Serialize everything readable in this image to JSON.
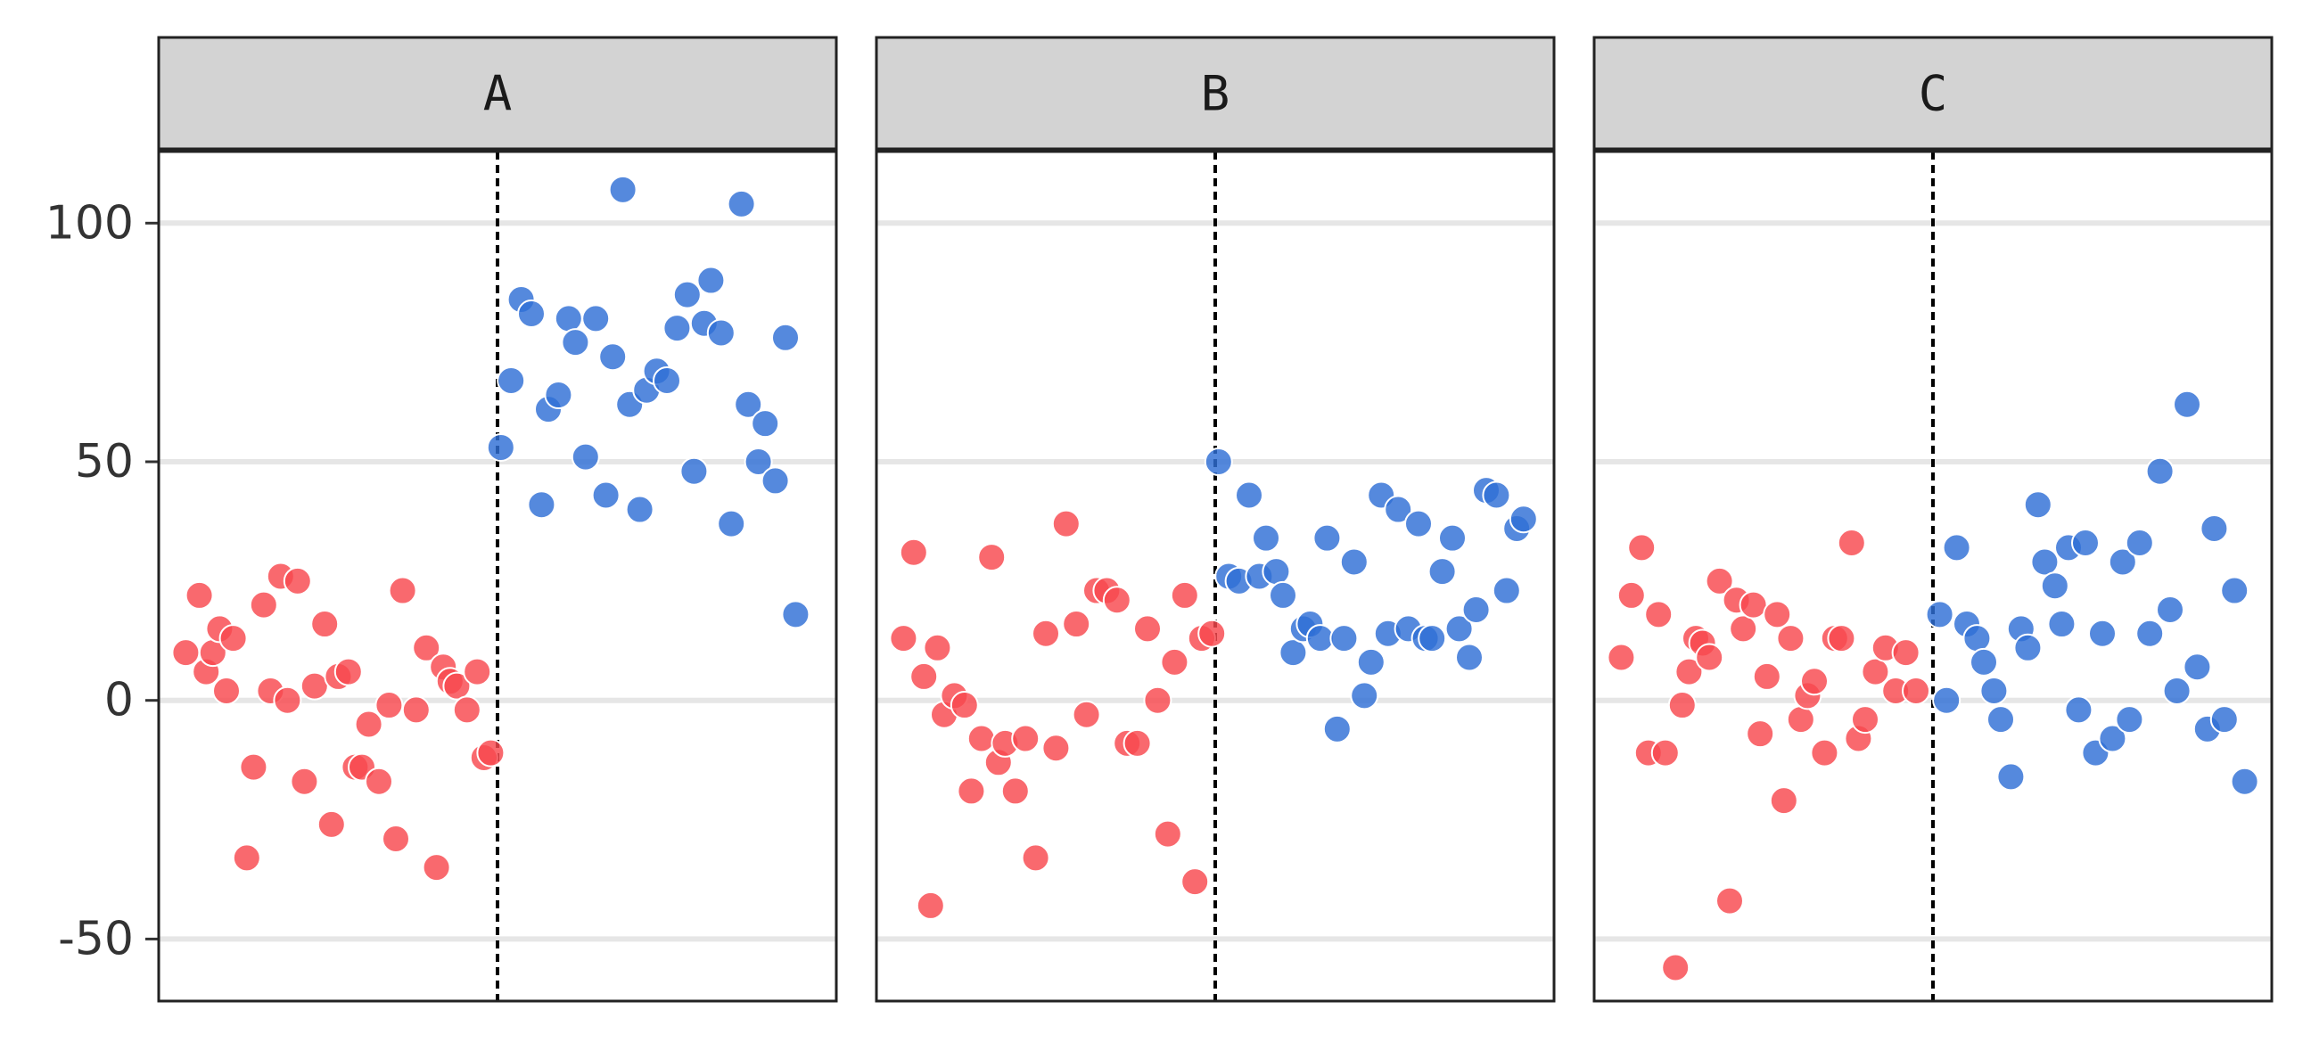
{
  "chart_data": {
    "type": "scatter",
    "facet_by": "group",
    "ylim": [
      -63,
      115
    ],
    "y_ticks": [
      -50,
      0,
      50,
      100
    ],
    "y_tick_labels": [
      "-50",
      "0",
      "50",
      "100"
    ],
    "grid": "horizontal major",
    "x_axis_visible": false,
    "colors": {
      "before": "#f8484e",
      "after": "#2f6fd5",
      "cutoff_line": "#000000",
      "strip": "#d3d3d3",
      "grid": "#e6e6e6"
    },
    "facets": [
      {
        "label": "A",
        "cutoff": 0.5,
        "before": [
          [
            0.04,
            10
          ],
          [
            0.06,
            22
          ],
          [
            0.07,
            6
          ],
          [
            0.08,
            10
          ],
          [
            0.09,
            15
          ],
          [
            0.1,
            2
          ],
          [
            0.11,
            13
          ],
          [
            0.13,
            -33
          ],
          [
            0.14,
            -14
          ],
          [
            0.155,
            20
          ],
          [
            0.165,
            2
          ],
          [
            0.18,
            26
          ],
          [
            0.19,
            0
          ],
          [
            0.205,
            25
          ],
          [
            0.215,
            -17
          ],
          [
            0.23,
            3
          ],
          [
            0.245,
            16
          ],
          [
            0.255,
            -26
          ],
          [
            0.265,
            5
          ],
          [
            0.28,
            6
          ],
          [
            0.29,
            -14
          ],
          [
            0.3,
            -14
          ],
          [
            0.31,
            -5
          ],
          [
            0.325,
            -17
          ],
          [
            0.34,
            -1
          ],
          [
            0.35,
            -29
          ],
          [
            0.36,
            23
          ],
          [
            0.38,
            -2
          ],
          [
            0.395,
            11
          ],
          [
            0.41,
            -35
          ],
          [
            0.42,
            7
          ],
          [
            0.43,
            4
          ],
          [
            0.44,
            3
          ],
          [
            0.455,
            -2
          ],
          [
            0.47,
            6
          ],
          [
            0.48,
            -12
          ],
          [
            0.49,
            -11
          ]
        ],
        "after": [
          [
            0.505,
            53
          ],
          [
            0.52,
            67
          ],
          [
            0.535,
            84
          ],
          [
            0.55,
            81
          ],
          [
            0.565,
            41
          ],
          [
            0.575,
            61
          ],
          [
            0.59,
            64
          ],
          [
            0.605,
            80
          ],
          [
            0.615,
            75
          ],
          [
            0.63,
            51
          ],
          [
            0.645,
            80
          ],
          [
            0.66,
            43
          ],
          [
            0.67,
            72
          ],
          [
            0.685,
            107
          ],
          [
            0.695,
            62
          ],
          [
            0.71,
            40
          ],
          [
            0.72,
            65
          ],
          [
            0.735,
            69
          ],
          [
            0.75,
            67
          ],
          [
            0.765,
            78
          ],
          [
            0.78,
            85
          ],
          [
            0.79,
            48
          ],
          [
            0.805,
            79
          ],
          [
            0.815,
            88
          ],
          [
            0.83,
            77
          ],
          [
            0.845,
            37
          ],
          [
            0.86,
            104
          ],
          [
            0.87,
            62
          ],
          [
            0.885,
            50
          ],
          [
            0.895,
            58
          ],
          [
            0.91,
            46
          ],
          [
            0.925,
            76
          ],
          [
            0.94,
            18
          ]
        ]
      },
      {
        "label": "B",
        "cutoff": 0.5,
        "before": [
          [
            0.04,
            13
          ],
          [
            0.055,
            31
          ],
          [
            0.07,
            5
          ],
          [
            0.08,
            -43
          ],
          [
            0.09,
            11
          ],
          [
            0.1,
            -3
          ],
          [
            0.115,
            1
          ],
          [
            0.13,
            -1
          ],
          [
            0.14,
            -19
          ],
          [
            0.155,
            -8
          ],
          [
            0.17,
            30
          ],
          [
            0.18,
            -13
          ],
          [
            0.19,
            -9
          ],
          [
            0.205,
            -19
          ],
          [
            0.22,
            -8
          ],
          [
            0.235,
            -33
          ],
          [
            0.25,
            14
          ],
          [
            0.265,
            -10
          ],
          [
            0.28,
            37
          ],
          [
            0.295,
            16
          ],
          [
            0.31,
            -3
          ],
          [
            0.325,
            23
          ],
          [
            0.34,
            23
          ],
          [
            0.355,
            21
          ],
          [
            0.37,
            -9
          ],
          [
            0.385,
            -9
          ],
          [
            0.4,
            15
          ],
          [
            0.415,
            0
          ],
          [
            0.43,
            -28
          ],
          [
            0.44,
            8
          ],
          [
            0.455,
            22
          ],
          [
            0.47,
            -38
          ],
          [
            0.48,
            13
          ],
          [
            0.495,
            14
          ]
        ],
        "after": [
          [
            0.505,
            50
          ],
          [
            0.52,
            26
          ],
          [
            0.535,
            25
          ],
          [
            0.55,
            43
          ],
          [
            0.565,
            26
          ],
          [
            0.575,
            34
          ],
          [
            0.59,
            27
          ],
          [
            0.6,
            22
          ],
          [
            0.615,
            10
          ],
          [
            0.63,
            15
          ],
          [
            0.64,
            16
          ],
          [
            0.655,
            13
          ],
          [
            0.665,
            34
          ],
          [
            0.68,
            -6
          ],
          [
            0.69,
            13
          ],
          [
            0.705,
            29
          ],
          [
            0.72,
            1
          ],
          [
            0.73,
            8
          ],
          [
            0.745,
            43
          ],
          [
            0.755,
            14
          ],
          [
            0.77,
            40
          ],
          [
            0.785,
            15
          ],
          [
            0.8,
            37
          ],
          [
            0.81,
            13
          ],
          [
            0.82,
            13
          ],
          [
            0.835,
            27
          ],
          [
            0.85,
            34
          ],
          [
            0.86,
            15
          ],
          [
            0.875,
            9
          ],
          [
            0.885,
            19
          ],
          [
            0.9,
            44
          ],
          [
            0.915,
            43
          ],
          [
            0.93,
            23
          ],
          [
            0.945,
            36
          ],
          [
            0.955,
            38
          ]
        ]
      },
      {
        "label": "C",
        "cutoff": 0.5,
        "before": [
          [
            0.04,
            9
          ],
          [
            0.055,
            22
          ],
          [
            0.07,
            32
          ],
          [
            0.08,
            -11
          ],
          [
            0.095,
            18
          ],
          [
            0.105,
            -11
          ],
          [
            0.12,
            -56
          ],
          [
            0.13,
            -1
          ],
          [
            0.14,
            6
          ],
          [
            0.15,
            13
          ],
          [
            0.16,
            12
          ],
          [
            0.17,
            9
          ],
          [
            0.185,
            25
          ],
          [
            0.2,
            -42
          ],
          [
            0.21,
            21
          ],
          [
            0.22,
            15
          ],
          [
            0.235,
            20
          ],
          [
            0.245,
            -7
          ],
          [
            0.255,
            5
          ],
          [
            0.27,
            18
          ],
          [
            0.28,
            -21
          ],
          [
            0.29,
            13
          ],
          [
            0.305,
            -4
          ],
          [
            0.315,
            1
          ],
          [
            0.325,
            4
          ],
          [
            0.34,
            -11
          ],
          [
            0.355,
            13
          ],
          [
            0.365,
            13
          ],
          [
            0.38,
            33
          ],
          [
            0.39,
            -8
          ],
          [
            0.4,
            -4
          ],
          [
            0.415,
            6
          ],
          [
            0.43,
            11
          ],
          [
            0.445,
            2
          ],
          [
            0.46,
            10
          ],
          [
            0.475,
            2
          ]
        ],
        "after": [
          [
            0.51,
            18
          ],
          [
            0.52,
            0
          ],
          [
            0.535,
            32
          ],
          [
            0.55,
            16
          ],
          [
            0.565,
            13
          ],
          [
            0.575,
            8
          ],
          [
            0.59,
            2
          ],
          [
            0.6,
            -4
          ],
          [
            0.615,
            -16
          ],
          [
            0.63,
            15
          ],
          [
            0.64,
            11
          ],
          [
            0.655,
            41
          ],
          [
            0.665,
            29
          ],
          [
            0.68,
            24
          ],
          [
            0.69,
            16
          ],
          [
            0.7,
            32
          ],
          [
            0.715,
            -2
          ],
          [
            0.725,
            33
          ],
          [
            0.74,
            -11
          ],
          [
            0.75,
            14
          ],
          [
            0.765,
            -8
          ],
          [
            0.78,
            29
          ],
          [
            0.79,
            -4
          ],
          [
            0.805,
            33
          ],
          [
            0.82,
            14
          ],
          [
            0.835,
            48
          ],
          [
            0.85,
            19
          ],
          [
            0.86,
            2
          ],
          [
            0.875,
            62
          ],
          [
            0.89,
            7
          ],
          [
            0.905,
            -6
          ],
          [
            0.915,
            36
          ],
          [
            0.93,
            -4
          ],
          [
            0.945,
            23
          ],
          [
            0.96,
            -17
          ]
        ]
      }
    ]
  }
}
